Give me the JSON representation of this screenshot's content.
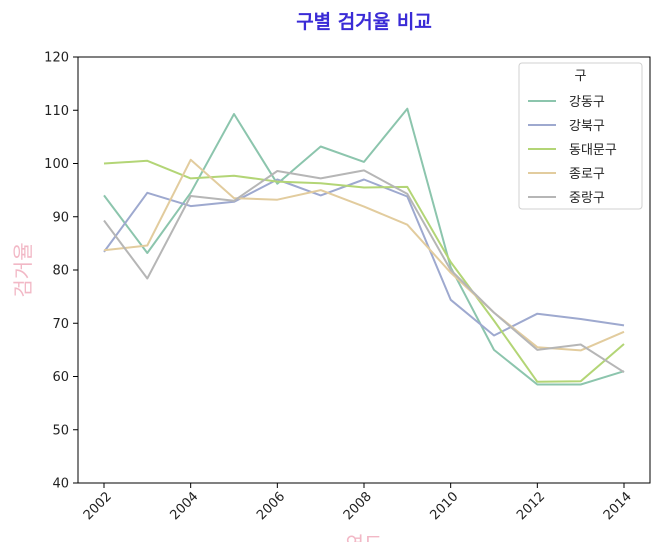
{
  "chart_data": {
    "type": "line",
    "title": "구별 검거율 비교",
    "xlabel": "연도",
    "ylabel": "검거율",
    "x": [
      2002,
      2003,
      2004,
      2005,
      2006,
      2007,
      2008,
      2009,
      2010,
      2011,
      2012,
      2013,
      2014
    ],
    "xticks": [
      2002,
      2004,
      2006,
      2008,
      2010,
      2012,
      2014
    ],
    "xlim": [
      2001.4,
      2014.6
    ],
    "ylim": [
      40,
      120
    ],
    "yticks": [
      40,
      50,
      60,
      70,
      80,
      90,
      100,
      110,
      120
    ],
    "grid": false,
    "legend": {
      "title": "구",
      "placement": "top-right"
    },
    "series": [
      {
        "name": "강동구",
        "color": "#8cc5ad",
        "values": [
          94.0,
          83.2,
          94.5,
          109.3,
          96.2,
          103.2,
          100.3,
          110.3,
          80.5,
          65.0,
          58.5,
          58.5,
          61.0
        ]
      },
      {
        "name": "강북구",
        "color": "#9ea9cf",
        "values": [
          83.4,
          94.5,
          92.0,
          92.8,
          97.0,
          94.0,
          97.0,
          93.8,
          74.4,
          67.7,
          71.8,
          70.8,
          69.6
        ]
      },
      {
        "name": "동대문구",
        "color": "#b3d576",
        "values": [
          100.0,
          100.5,
          97.2,
          97.7,
          96.6,
          96.3,
          95.5,
          95.6,
          81.5,
          70.5,
          59.0,
          59.1,
          66.1
        ]
      },
      {
        "name": "종로구",
        "color": "#e2cc9e",
        "values": [
          83.7,
          84.6,
          100.7,
          93.5,
          93.2,
          95.0,
          91.9,
          88.5,
          79.5,
          72.0,
          65.5,
          64.9,
          68.4
        ]
      },
      {
        "name": "중랑구",
        "color": "#b6b6b6",
        "values": [
          89.3,
          78.4,
          93.9,
          93.0,
          98.6,
          97.2,
          98.7,
          94.3,
          80.0,
          72.0,
          65.0,
          66.0,
          60.8
        ]
      }
    ]
  }
}
